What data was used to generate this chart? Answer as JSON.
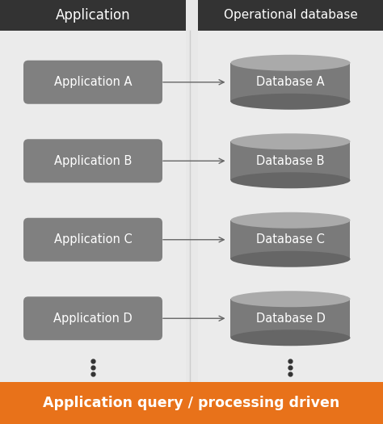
{
  "bg_color": "#e8e8e8",
  "left_col_color": "#ebebeb",
  "right_col_color": "#ebebeb",
  "header_bg": "#333333",
  "header_text_color": "#ffffff",
  "app_col_header": "Application",
  "db_col_header": "Operational database",
  "app_labels": [
    "Application A",
    "Application B",
    "Application C",
    "Application D"
  ],
  "db_labels": [
    "Database A",
    "Database B",
    "Database C",
    "Database D"
  ],
  "box_color": "#808080",
  "box_text_color": "#ffffff",
  "cylinder_body_color": "#7a7a7a",
  "cylinder_top_color": "#aaaaaa",
  "cylinder_bottom_color": "#666666",
  "arrow_color": "#666666",
  "footer_bg": "#e8721a",
  "footer_text": "Application query / processing driven",
  "footer_text_color": "#ffffff",
  "dots_color": "#333333",
  "separator_color": "#cccccc",
  "fig_width": 4.74,
  "fig_height": 5.25,
  "dpi": 100
}
